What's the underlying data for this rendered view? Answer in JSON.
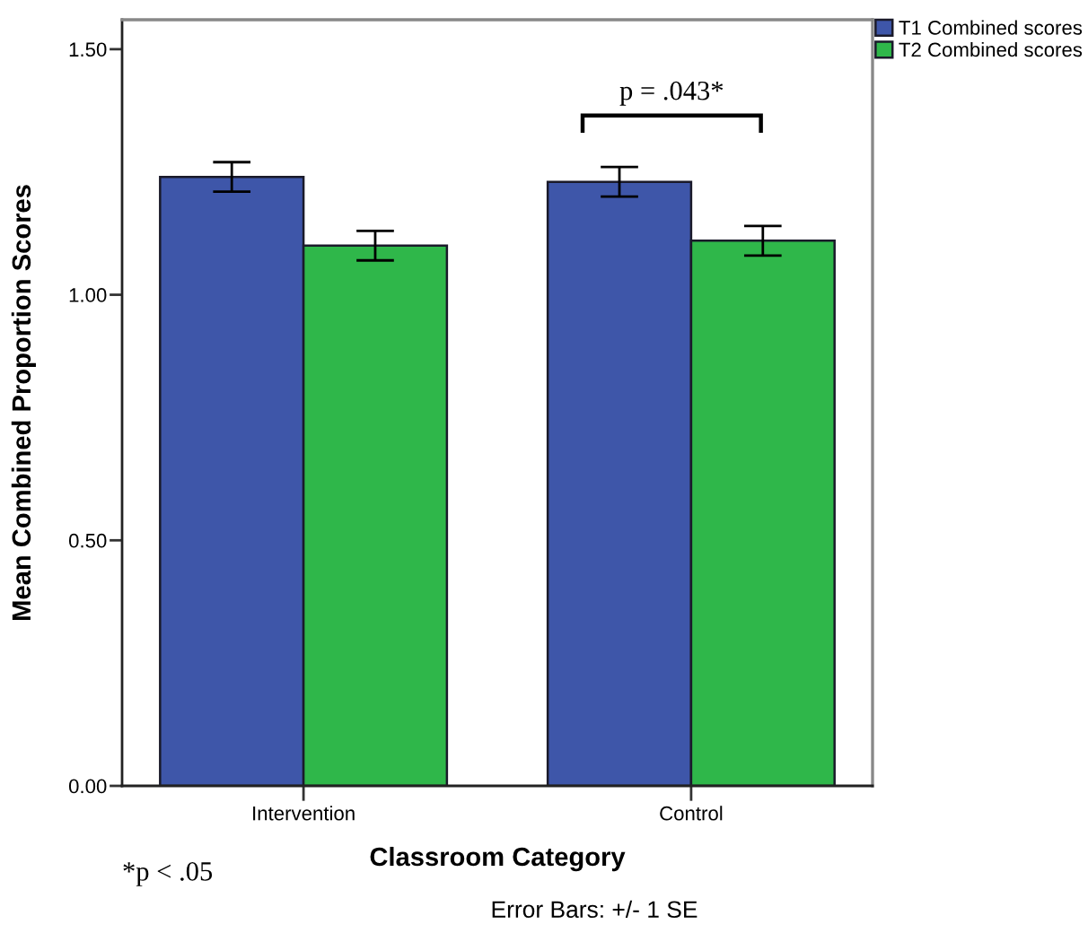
{
  "chart_data": {
    "type": "bar",
    "xlabel": "Classroom Category",
    "ylabel": "Mean Combined Proportion Scores",
    "categories": [
      "Intervention",
      "Control"
    ],
    "series": [
      {
        "name": "T1 Combined scores",
        "color": "#3e56a9",
        "values": [
          1.24,
          1.23
        ],
        "errors": [
          0.03,
          0.03
        ]
      },
      {
        "name": "T2 Combined scores",
        "color": "#2fb74a",
        "values": [
          1.1,
          1.11
        ],
        "errors": [
          0.03,
          0.03
        ]
      }
    ],
    "ylim": [
      0,
      1.56
    ],
    "yticks": [
      {
        "value": 0,
        "label": "0.00"
      },
      {
        "value": 0.5,
        "label": "0.50"
      },
      {
        "value": 1.0,
        "label": "1.00"
      },
      {
        "value": 1.5,
        "label": "1.50"
      }
    ],
    "legend": "top right",
    "grid": false,
    "annotations": [
      "p = .043*",
      "*p < .05",
      "Error Bars: +/- 1 SE"
    ]
  }
}
